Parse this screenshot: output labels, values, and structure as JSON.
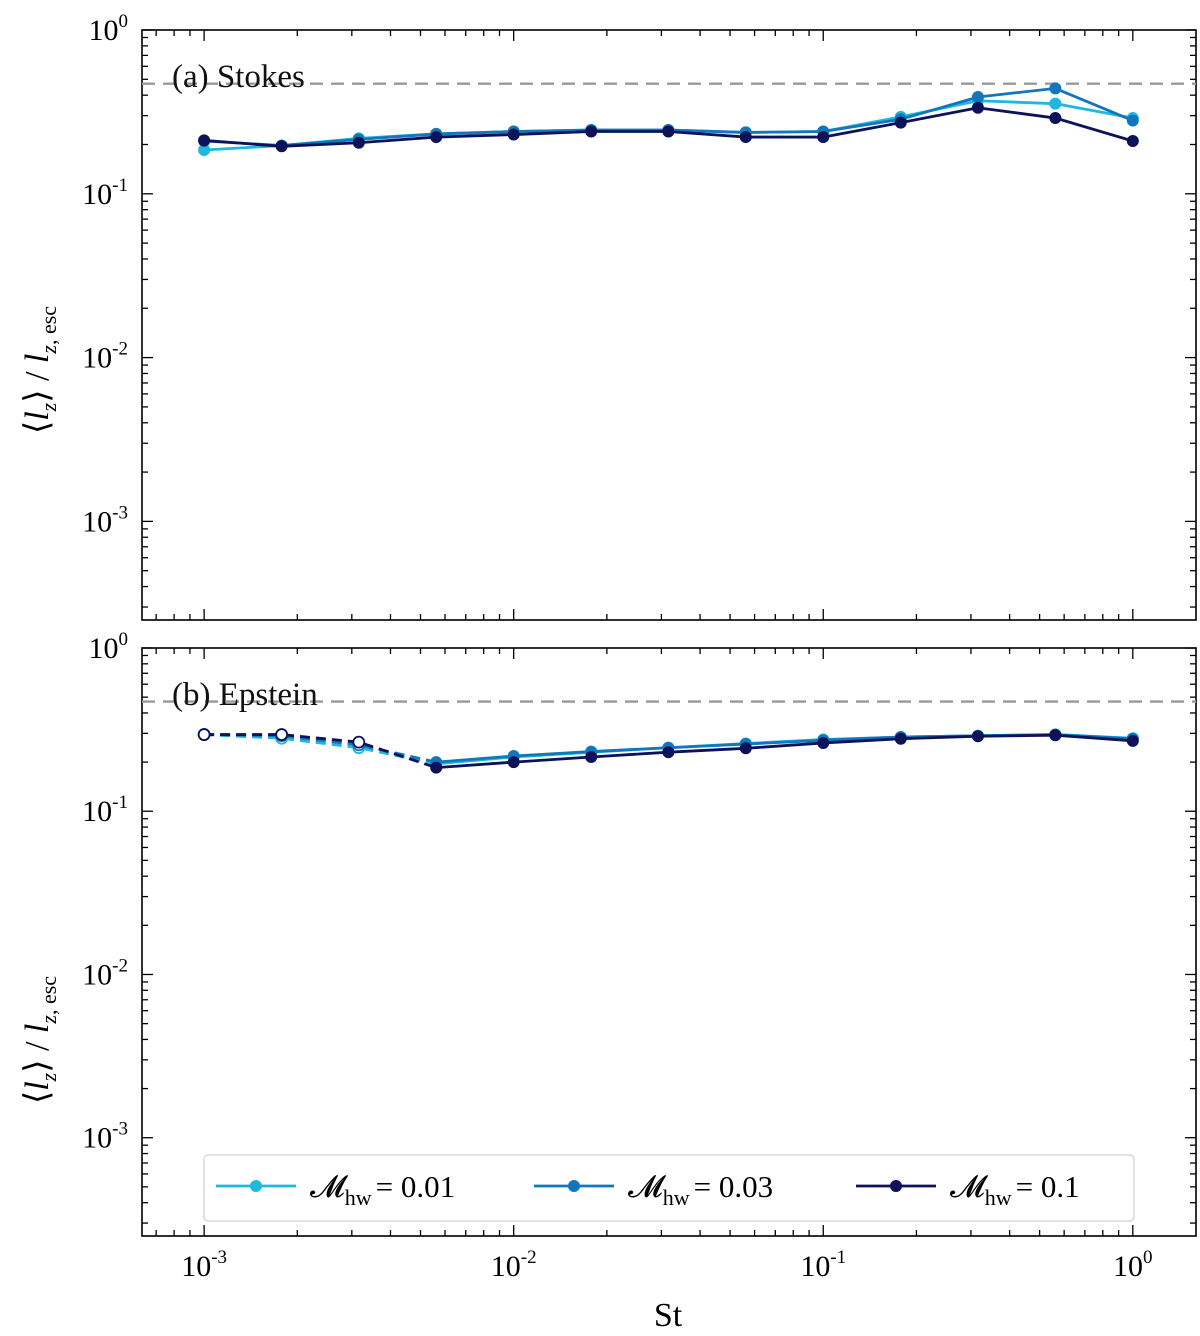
{
  "chart_data": {
    "type": "line",
    "xscale": "log",
    "yscale": "log",
    "xlabel": "St",
    "ylabel": "⟨l_z⟩ / l_z,esc",
    "xlim": [
      0.00063,
      1.6
    ],
    "ylim": [
      0.00025,
      1.0
    ],
    "x": [
      0.001,
      0.00178,
      0.00316,
      0.00562,
      0.01,
      0.0178,
      0.0316,
      0.0562,
      0.1,
      0.178,
      0.316,
      0.562,
      1.0
    ],
    "x_ticks": [
      {
        "value": 0.001,
        "base": "10",
        "exp": "-3"
      },
      {
        "value": 0.01,
        "base": "10",
        "exp": "-2"
      },
      {
        "value": 0.1,
        "base": "10",
        "exp": "-1"
      },
      {
        "value": 1,
        "base": "10",
        "exp": "0"
      }
    ],
    "y_ticks": [
      {
        "value": 1,
        "base": "10",
        "exp": "0"
      },
      {
        "value": 0.1,
        "base": "10",
        "exp": "-1"
      },
      {
        "value": 0.01,
        "base": "10",
        "exp": "-2"
      },
      {
        "value": 0.001,
        "base": "10",
        "exp": "-3"
      }
    ],
    "reference_line": {
      "y": 0.47,
      "style": "dashed",
      "color": "#999999"
    },
    "legend": {
      "placement": "bottom-center",
      "entries": [
        {
          "label_symbol": "𝓜",
          "label_sub": "hw",
          "label_value": "= 0.01",
          "color": "#1fb8df"
        },
        {
          "label_symbol": "𝓜",
          "label_sub": "hw",
          "label_value": "= 0.03",
          "color": "#1177bd"
        },
        {
          "label_symbol": "𝓜",
          "label_sub": "hw",
          "label_value": "= 0.1",
          "color": "#0d1259"
        }
      ]
    },
    "panels": [
      {
        "label": "(a) Stokes",
        "series": [
          {
            "name": "M_hw = 0.01",
            "color": "#1fb8df",
            "values": [
              0.185,
              0.197,
              0.218,
              0.232,
              0.24,
              0.245,
              0.245,
              0.237,
              0.24,
              0.295,
              0.37,
              0.355,
              0.29
            ],
            "open_until": -1
          },
          {
            "name": "M_hw = 0.03",
            "color": "#1177bd",
            "values": [
              0.21,
              0.197,
              0.215,
              0.232,
              0.24,
              0.245,
              0.245,
              0.237,
              0.24,
              0.285,
              0.39,
              0.44,
              0.28
            ],
            "open_until": -1
          },
          {
            "name": "M_hw = 0.1",
            "color": "#0d1259",
            "values": [
              0.212,
              0.195,
              0.205,
              0.222,
              0.23,
              0.24,
              0.24,
              0.222,
              0.222,
              0.272,
              0.335,
              0.29,
              0.21
            ],
            "open_until": -1
          }
        ]
      },
      {
        "label": "(b) Epstein",
        "series": [
          {
            "name": "M_hw = 0.01",
            "color": "#1fb8df",
            "values": [
              0.295,
              0.28,
              0.245,
              0.195,
              0.215,
              0.23,
              0.245,
              0.26,
              0.275,
              0.285,
              0.29,
              0.295,
              0.28
            ],
            "open_until": 2
          },
          {
            "name": "M_hw = 0.03",
            "color": "#1177bd",
            "values": [
              0.295,
              0.29,
              0.255,
              0.2,
              0.218,
              0.232,
              0.245,
              0.258,
              0.272,
              0.285,
              0.29,
              0.295,
              0.278
            ],
            "open_until": 2
          },
          {
            "name": "M_hw = 0.1",
            "color": "#0d1259",
            "values": [
              0.295,
              0.295,
              0.265,
              0.185,
              0.2,
              0.215,
              0.23,
              0.243,
              0.262,
              0.278,
              0.288,
              0.292,
              0.27
            ],
            "open_until": 2
          }
        ]
      }
    ]
  }
}
